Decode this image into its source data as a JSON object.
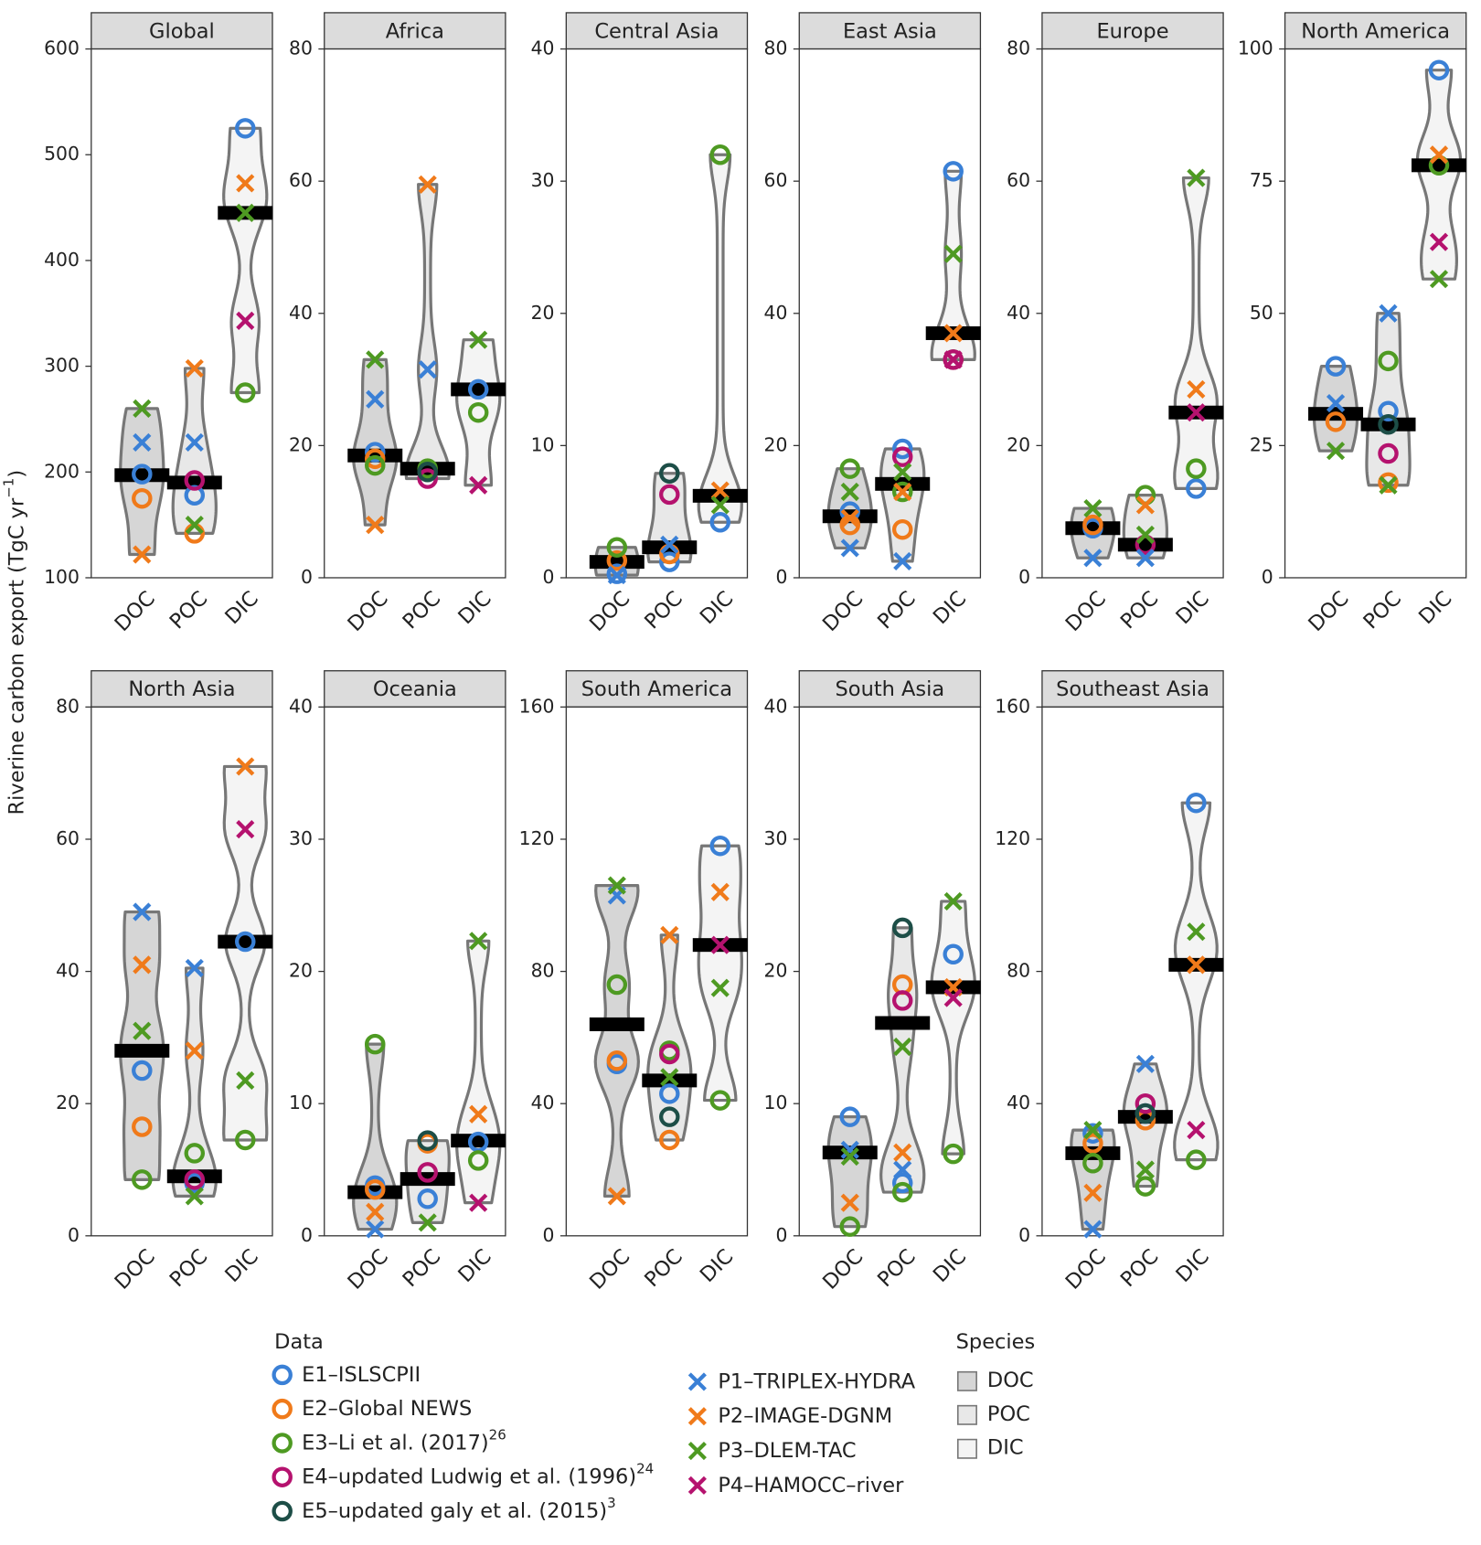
{
  "chart_data": [
    {
      "type": "violin",
      "title": "Global",
      "categories": [
        "DOC",
        "POC",
        "DIC"
      ],
      "ylim": [
        100,
        600
      ],
      "yticks": [
        100,
        200,
        300,
        400,
        500,
        600
      ],
      "medians": [
        197,
        190,
        445
      ],
      "series": [
        {
          "values": [
            198,
            178,
            525
          ]
        },
        {
          "values": [
            175,
            142,
            null
          ]
        },
        {
          "values": [
            null,
            null,
            275
          ]
        },
        {
          "values": [
            null,
            192,
            null
          ]
        },
        {
          "values": [
            null,
            null,
            null
          ]
        },
        {
          "values": [
            228,
            228,
            null
          ]
        },
        {
          "values": [
            122,
            298,
            473
          ]
        },
        {
          "values": [
            260,
            150,
            445
          ]
        },
        {
          "values": [
            null,
            null,
            343
          ]
        }
      ]
    },
    {
      "type": "violin",
      "title": "Africa",
      "categories": [
        "DOC",
        "POC",
        "DIC"
      ],
      "ylim": [
        0,
        80
      ],
      "yticks": [
        0,
        20,
        40,
        60,
        80
      ],
      "medians": [
        18.5,
        16.5,
        28.5
      ],
      "series": [
        {
          "values": [
            19,
            null,
            28.5
          ]
        },
        {
          "values": [
            18,
            null,
            null
          ]
        },
        {
          "values": [
            17,
            16.5,
            25
          ]
        },
        {
          "values": [
            null,
            15,
            null
          ]
        },
        {
          "values": [
            null,
            16,
            null
          ]
        },
        {
          "values": [
            27,
            31.5,
            null
          ]
        },
        {
          "values": [
            8,
            59.5,
            null
          ]
        },
        {
          "values": [
            33,
            null,
            36
          ]
        },
        {
          "values": [
            null,
            null,
            14
          ]
        }
      ]
    },
    {
      "type": "violin",
      "title": "Central Asia",
      "categories": [
        "DOC",
        "POC",
        "DIC"
      ],
      "ylim": [
        0,
        40
      ],
      "yticks": [
        0,
        10,
        20,
        30,
        40
      ],
      "medians": [
        1.2,
        2.3,
        6.2
      ],
      "series": [
        {
          "values": [
            0.3,
            1.2,
            4.2
          ]
        },
        {
          "values": [
            1.3,
            1.8,
            null
          ]
        },
        {
          "values": [
            2.3,
            null,
            32
          ]
        },
        {
          "values": [
            null,
            6.3,
            null
          ]
        },
        {
          "values": [
            null,
            7.9,
            null
          ]
        },
        {
          "values": [
            0.2,
            2.5,
            null
          ]
        },
        {
          "values": [
            null,
            null,
            6.6
          ]
        },
        {
          "values": [
            null,
            null,
            5.5
          ]
        },
        {
          "values": [
            null,
            null,
            null
          ]
        }
      ]
    },
    {
      "type": "violin",
      "title": "East Asia",
      "categories": [
        "DOC",
        "POC",
        "DIC"
      ],
      "ylim": [
        0,
        80
      ],
      "yticks": [
        0,
        20,
        40,
        60,
        80
      ],
      "medians": [
        9.3,
        14.2,
        37
      ],
      "series": [
        {
          "values": [
            10,
            19.5,
            61.5
          ]
        },
        {
          "values": [
            8,
            7.3,
            null
          ]
        },
        {
          "values": [
            16.5,
            13,
            33
          ]
        },
        {
          "values": [
            null,
            18.3,
            33
          ]
        },
        {
          "values": [
            null,
            null,
            null
          ]
        },
        {
          "values": [
            4.5,
            2.5,
            null
          ]
        },
        {
          "values": [
            9,
            13,
            37
          ]
        },
        {
          "values": [
            13,
            16,
            49
          ]
        },
        {
          "values": [
            null,
            null,
            33
          ]
        }
      ]
    },
    {
      "type": "violin",
      "title": "Europe",
      "categories": [
        "DOC",
        "POC",
        "DIC"
      ],
      "ylim": [
        0,
        80
      ],
      "yticks": [
        0,
        20,
        40,
        60,
        80
      ],
      "medians": [
        7.5,
        5,
        25
      ],
      "series": [
        {
          "values": [
            7.5,
            null,
            13.5
          ]
        },
        {
          "values": [
            8,
            null,
            null
          ]
        },
        {
          "values": [
            null,
            12.5,
            16.5
          ]
        },
        {
          "values": [
            null,
            5,
            null
          ]
        },
        {
          "values": [
            null,
            null,
            null
          ]
        },
        {
          "values": [
            3,
            3,
            null
          ]
        },
        {
          "values": [
            null,
            11,
            28.5
          ]
        },
        {
          "values": [
            10.5,
            6.5,
            60.5
          ]
        },
        {
          "values": [
            null,
            null,
            25
          ]
        }
      ]
    },
    {
      "type": "violin",
      "title": "North America",
      "categories": [
        "DOC",
        "POC",
        "DIC"
      ],
      "ylim": [
        0,
        100
      ],
      "yticks": [
        0,
        25,
        50,
        75,
        100
      ],
      "medians": [
        31,
        29,
        78
      ],
      "series": [
        {
          "values": [
            40,
            31.5,
            96
          ]
        },
        {
          "values": [
            29.5,
            18,
            null
          ]
        },
        {
          "values": [
            null,
            41,
            78
          ]
        },
        {
          "values": [
            null,
            23.5,
            null
          ]
        },
        {
          "values": [
            null,
            29,
            null
          ]
        },
        {
          "values": [
            33,
            50,
            null
          ]
        },
        {
          "values": [
            null,
            null,
            80
          ]
        },
        {
          "values": [
            24,
            17.5,
            56.5
          ]
        },
        {
          "values": [
            null,
            null,
            63.5
          ]
        }
      ]
    },
    {
      "type": "violin",
      "title": "North Asia",
      "categories": [
        "DOC",
        "POC",
        "DIC"
      ],
      "ylim": [
        0,
        80
      ],
      "yticks": [
        0,
        20,
        40,
        60,
        80
      ],
      "medians": [
        28,
        9,
        44.5
      ],
      "series": [
        {
          "values": [
            25,
            8,
            44.5
          ]
        },
        {
          "values": [
            16.5,
            null,
            null
          ]
        },
        {
          "values": [
            8.5,
            12.5,
            14.5
          ]
        },
        {
          "values": [
            null,
            8.5,
            null
          ]
        },
        {
          "values": [
            null,
            null,
            null
          ]
        },
        {
          "values": [
            49,
            40.5,
            null
          ]
        },
        {
          "values": [
            41,
            28,
            71
          ]
        },
        {
          "values": [
            31,
            6,
            23.5
          ]
        },
        {
          "values": [
            null,
            null,
            61.5
          ]
        }
      ]
    },
    {
      "type": "violin",
      "title": "Oceania",
      "categories": [
        "DOC",
        "POC",
        "DIC"
      ],
      "ylim": [
        0,
        40
      ],
      "yticks": [
        0,
        10,
        20,
        30,
        40
      ],
      "medians": [
        3.3,
        4.3,
        7.2
      ],
      "series": [
        {
          "values": [
            3.8,
            2.8,
            7.1
          ]
        },
        {
          "values": [
            3.5,
            7,
            null
          ]
        },
        {
          "values": [
            14.5,
            null,
            5.7
          ]
        },
        {
          "values": [
            null,
            4.8,
            null
          ]
        },
        {
          "values": [
            null,
            7.2,
            null
          ]
        },
        {
          "values": [
            0.5,
            null,
            null
          ]
        },
        {
          "values": [
            1.8,
            null,
            9.2
          ]
        },
        {
          "values": [
            null,
            1,
            22.3
          ]
        },
        {
          "values": [
            null,
            null,
            2.5
          ]
        }
      ]
    },
    {
      "type": "violin",
      "title": "South America",
      "categories": [
        "DOC",
        "POC",
        "DIC"
      ],
      "ylim": [
        0,
        160
      ],
      "yticks": [
        0,
        40,
        80,
        120,
        160
      ],
      "medians": [
        64,
        47,
        88
      ],
      "series": [
        {
          "values": [
            52,
            43,
            118
          ]
        },
        {
          "values": [
            53,
            29,
            null
          ]
        },
        {
          "values": [
            76,
            56,
            41
          ]
        },
        {
          "values": [
            null,
            55,
            null
          ]
        },
        {
          "values": [
            null,
            36,
            null
          ]
        },
        {
          "values": [
            103,
            null,
            null
          ]
        },
        {
          "values": [
            12,
            91,
            104
          ]
        },
        {
          "values": [
            106,
            48,
            75
          ]
        },
        {
          "values": [
            null,
            null,
            88
          ]
        }
      ]
    },
    {
      "type": "violin",
      "title": "South Asia",
      "categories": [
        "DOC",
        "POC",
        "DIC"
      ],
      "ylim": [
        0,
        40
      ],
      "yticks": [
        0,
        10,
        20,
        30,
        40
      ],
      "medians": [
        6.3,
        16.1,
        18.8
      ],
      "series": [
        {
          "values": [
            9,
            4,
            21.3
          ]
        },
        {
          "values": [
            null,
            19,
            null
          ]
        },
        {
          "values": [
            0.7,
            3.3,
            6.2
          ]
        },
        {
          "values": [
            null,
            17.8,
            null
          ]
        },
        {
          "values": [
            null,
            23.3,
            null
          ]
        },
        {
          "values": [
            6.5,
            5,
            null
          ]
        },
        {
          "values": [
            2.5,
            6.3,
            18.8
          ]
        },
        {
          "values": [
            6,
            14.3,
            25.3
          ]
        },
        {
          "values": [
            null,
            null,
            18
          ]
        }
      ]
    },
    {
      "type": "violin",
      "title": "Southeast Asia",
      "categories": [
        "DOC",
        "POC",
        "DIC"
      ],
      "ylim": [
        0,
        160
      ],
      "yticks": [
        0,
        40,
        80,
        120,
        160
      ],
      "medians": [
        25,
        36,
        82
      ],
      "series": [
        {
          "values": [
            31,
            37,
            131
          ]
        },
        {
          "values": [
            28,
            35,
            null
          ]
        },
        {
          "values": [
            22,
            15,
            23
          ]
        },
        {
          "values": [
            null,
            40,
            null
          ]
        },
        {
          "values": [
            null,
            37,
            null
          ]
        },
        {
          "values": [
            2,
            52,
            null
          ]
        },
        {
          "values": [
            13,
            null,
            82
          ]
        },
        {
          "values": [
            32,
            20,
            92
          ]
        },
        {
          "values": [
            null,
            null,
            32
          ]
        }
      ]
    }
  ],
  "y_label": {
    "text": "Riverine carbon export (TgC yr",
    "sup": "−1",
    "end": ")"
  },
  "legend": {
    "title": "Data",
    "entries": [
      {
        "name": "E1–ISLSCPII",
        "color": "#3a80d6",
        "marker": "circle"
      },
      {
        "name": "E2–Global NEWS",
        "color": "#f07a1a",
        "marker": "circle"
      },
      {
        "name": "E3–Li et al. (2017)",
        "sup": "26",
        "color": "#4e9a22",
        "marker": "circle"
      },
      {
        "name": "E4–updated Ludwig et al. (1996)",
        "sup": "24",
        "color": "#b5126e",
        "marker": "circle"
      },
      {
        "name": "E5–updated galy et al. (2015)",
        "sup": "3",
        "color": "#1d4e47",
        "marker": "circle"
      },
      {
        "name": "P1–TRIPLEX-HYDRA",
        "color": "#3a80d6",
        "marker": "cross"
      },
      {
        "name": "P2–IMAGE-DGNM",
        "color": "#f07a1a",
        "marker": "cross"
      },
      {
        "name": "P3–DLEM-TAC",
        "color": "#4e9a22",
        "marker": "cross"
      },
      {
        "name": "P4–HAMOCC–river",
        "color": "#b5126e",
        "marker": "cross"
      }
    ]
  },
  "species_legend": {
    "title": "Species",
    "entries": [
      {
        "name": "DOC",
        "color": "#d6d6d6"
      },
      {
        "name": "POC",
        "color": "#e8e8e8"
      },
      {
        "name": "DIC",
        "color": "#f4f4f4"
      }
    ]
  }
}
